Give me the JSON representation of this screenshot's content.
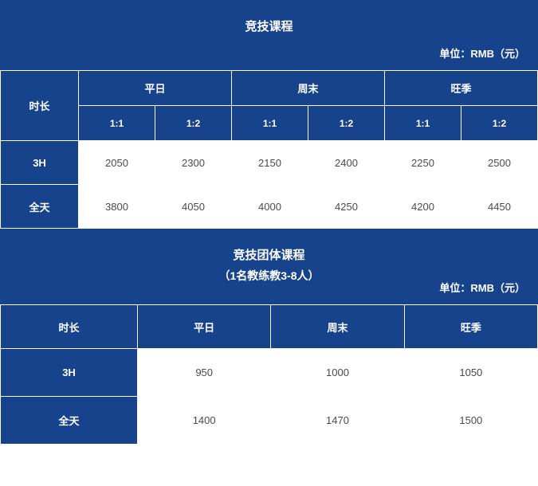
{
  "colors": {
    "bg": "#17438d",
    "body_text": "#4a4a4a",
    "border": "#ffffff",
    "header_text": "#ffffff",
    "cell_bg": "#ffffff"
  },
  "fontsize": {
    "title": 15,
    "header": 13,
    "cell": 13,
    "ratio": 12
  },
  "section1": {
    "title": "竞技课程",
    "unit": "单位：RMB（元）",
    "duration_header": "时长",
    "periods": [
      "平日",
      "周末",
      "旺季"
    ],
    "ratios": [
      "1:1",
      "1:2"
    ],
    "rows": [
      {
        "label": "3H",
        "values": [
          2050,
          2300,
          2150,
          2400,
          2250,
          2500
        ]
      },
      {
        "label": "全天",
        "values": [
          3800,
          4050,
          4000,
          4250,
          4200,
          4450
        ]
      }
    ]
  },
  "section2": {
    "title": "竞技团体课程",
    "subtitle": "（1名教练教3-8人）",
    "unit": "单位：RMB（元）",
    "duration_header": "时长",
    "periods": [
      "平日",
      "周末",
      "旺季"
    ],
    "rows": [
      {
        "label": "3H",
        "values": [
          950,
          1000,
          1050
        ]
      },
      {
        "label": "全天",
        "values": [
          1400,
          1470,
          1500
        ]
      }
    ]
  }
}
